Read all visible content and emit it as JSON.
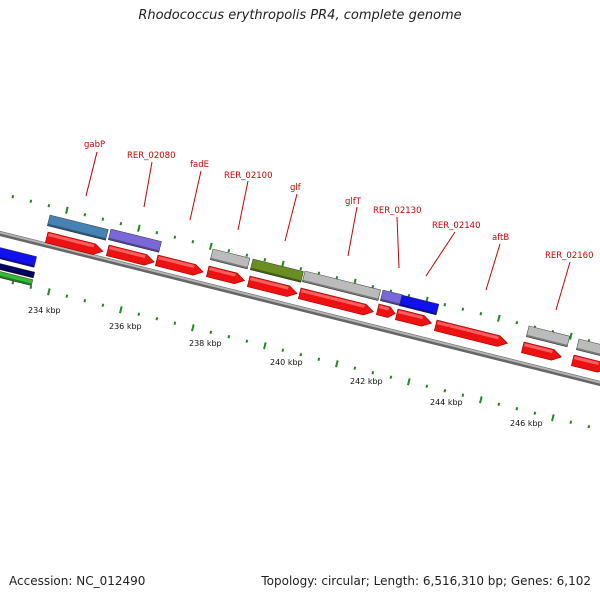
{
  "title": "Rhodococcus erythropolis PR4, complete genome",
  "footer": {
    "accession": "Accession: NC_012490",
    "summary": "Topology: circular; Length: 6,516,310 bp; Genes: 6,102"
  },
  "colors": {
    "gene_red": "#ee1111",
    "backbone": "#888888",
    "tick_green": "#228822",
    "label_red": "#cc0000",
    "blue_gene": "#1111ee",
    "steel_blue": "#4682b4",
    "slate_purple": "#7b68d8",
    "grey_gene": "#bbbbbb",
    "olive_green": "#6b8e23",
    "green_gene": "#33bb33",
    "navy": "#000066"
  },
  "gene_labels": [
    {
      "name": "gabP"
    },
    {
      "name": "RER_02080"
    },
    {
      "name": "fadE"
    },
    {
      "name": "RER_02100"
    },
    {
      "name": "glf"
    },
    {
      "name": "glfT"
    },
    {
      "name": "RER_02130"
    },
    {
      "name": "RER_02140"
    },
    {
      "name": "aftB"
    },
    {
      "name": "RER_02160"
    }
  ],
  "scale_ticks": [
    {
      "label": "234 kbp"
    },
    {
      "label": "236 kbp"
    },
    {
      "label": "238 kbp"
    },
    {
      "label": "240 kbp"
    },
    {
      "label": "242 kbp"
    },
    {
      "label": "244 kbp"
    },
    {
      "label": "246 kbp"
    }
  ]
}
